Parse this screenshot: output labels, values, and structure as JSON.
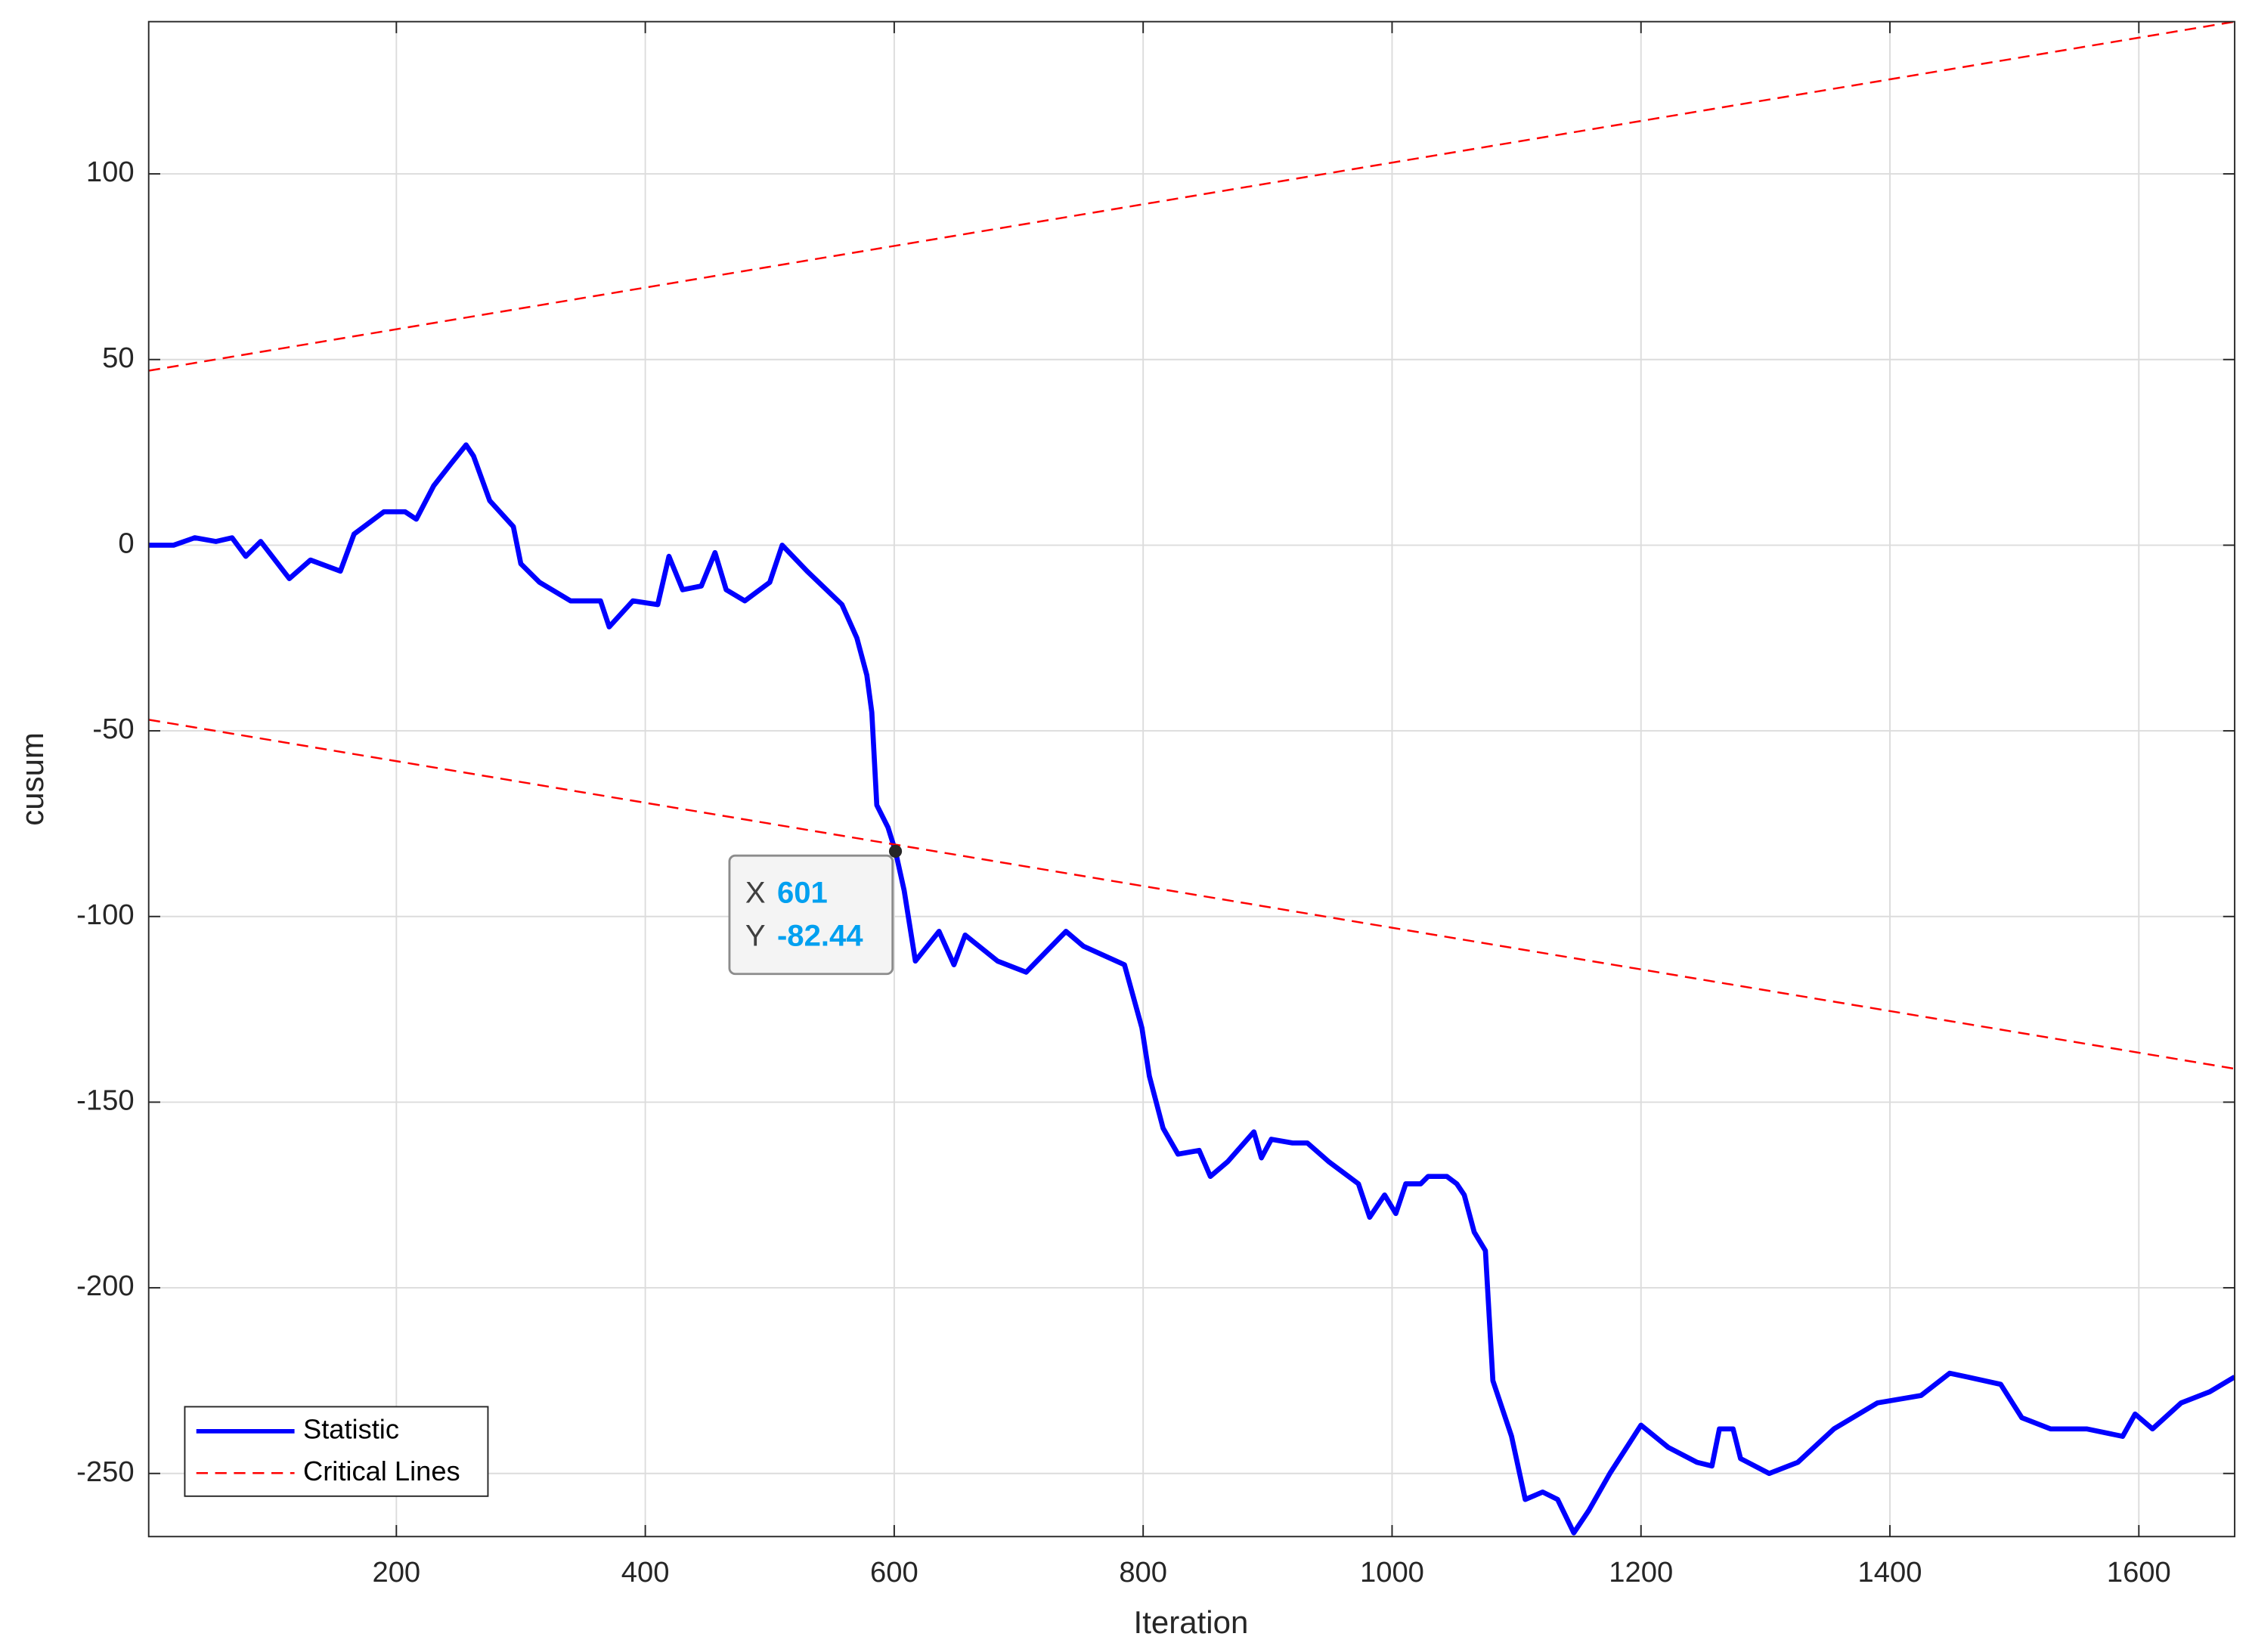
{
  "chart_data": {
    "type": "line",
    "xlabel": "Iteration",
    "ylabel": "cusum",
    "xlim": [
      1,
      1677
    ],
    "ylim": [
      -267,
      141
    ],
    "xticks": [
      200,
      400,
      600,
      800,
      1000,
      1200,
      1400,
      1600
    ],
    "yticks": [
      -250,
      -200,
      -150,
      -100,
      -50,
      0,
      50,
      100
    ],
    "grid": true,
    "legend": "lower left",
    "series": [
      {
        "name": "Statistic",
        "color": "#0000ff",
        "style": "solid",
        "x": [
          1,
          21,
          38,
          55,
          68,
          79,
          91,
          114,
          131,
          155,
          166,
          190,
          207,
          216,
          230,
          244,
          256,
          262,
          275,
          294,
          300,
          315,
          340,
          364,
          371,
          390,
          410,
          419,
          430,
          445,
          456,
          465,
          480,
          500,
          510,
          530,
          558,
          570,
          578,
          582,
          586,
          595,
          601,
          608,
          617,
          636,
          648,
          657,
          683,
          706,
          738,
          752,
          785,
          799,
          805,
          816,
          828,
          845,
          854,
          868,
          889,
          895,
          903,
          920,
          932,
          949,
          973,
          982,
          994,
          1003,
          1011,
          1023,
          1029,
          1044,
          1052,
          1058,
          1066,
          1075,
          1081,
          1096,
          1107,
          1121,
          1133,
          1146,
          1158,
          1175,
          1200,
          1222,
          1245,
          1257,
          1263,
          1274,
          1280,
          1303,
          1326,
          1355,
          1390,
          1425,
          1448,
          1462,
          1489,
          1506,
          1529,
          1558,
          1587,
          1597,
          1611,
          1634,
          1657,
          1677
        ],
        "values": [
          0,
          0,
          2,
          1,
          2,
          -3,
          1,
          -9,
          -4,
          -7,
          3,
          9,
          9,
          7,
          16,
          22,
          27,
          24,
          12,
          5,
          -5,
          -10,
          -15,
          -15,
          -22,
          -15,
          -16,
          -3,
          -12,
          -11,
          -2,
          -12,
          -15,
          -10,
          0,
          -7,
          -16,
          -25,
          -35,
          -45,
          -70,
          -76,
          -82.44,
          -93,
          -112,
          -104,
          -113,
          -105,
          -112,
          -115,
          -104,
          -108,
          -113,
          -130,
          -143,
          -157,
          -164,
          -163,
          -170,
          -166,
          -158,
          -165,
          -160,
          -161,
          -161,
          -166,
          -172,
          -181,
          -175,
          -180,
          -172,
          -172,
          -170,
          -170,
          -172,
          -175,
          -185,
          -190,
          -225,
          -240,
          -257,
          -255,
          -257,
          -266,
          -260,
          -250,
          -237,
          -243,
          -247,
          -248,
          -238,
          -238,
          -246,
          -250,
          -247,
          -238,
          -231,
          -229,
          -223,
          -224,
          -226,
          -235,
          -238,
          -238,
          -240,
          -234,
          -238,
          -231,
          -228,
          -224
        ]
      },
      {
        "name": "Critical Lines",
        "color": "#ff0000",
        "style": "dashed",
        "x": [
          1,
          1677
        ],
        "values": [
          47,
          141
        ],
        "lower_values": [
          -47,
          -141
        ]
      }
    ],
    "datatip": {
      "x_label": "X",
      "x": 601,
      "y_label": "Y",
      "y": -82.44
    }
  }
}
